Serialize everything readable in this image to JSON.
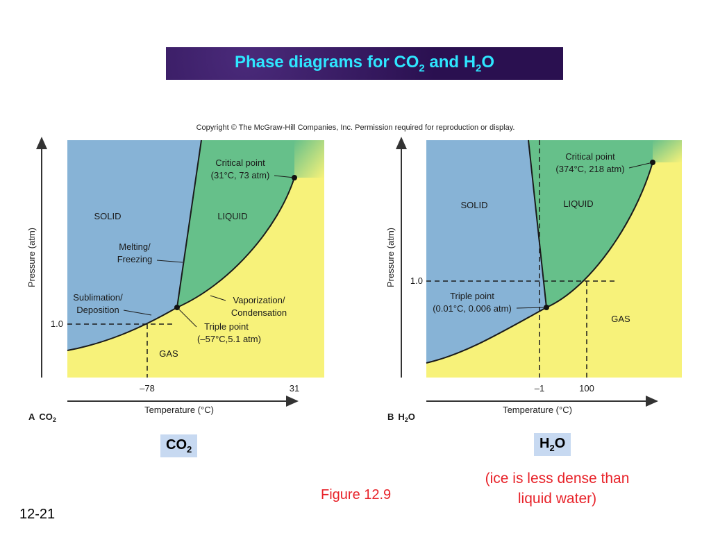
{
  "title": {
    "prefix": "Phase diagrams for CO",
    "sub1": "2",
    "mid": " and H",
    "sub2": "2",
    "suffix": "O"
  },
  "copyright": "Copyright © The McGraw-Hill Companies, Inc. Permission required for reproduction or display.",
  "diagram_a": {
    "ylabel": "Pressure (atm)",
    "xlabel": "Temperature (°C)",
    "panel_letter": "A",
    "panel_formula": "CO",
    "panel_formula_sub": "2",
    "regions": {
      "solid": "SOLID",
      "liquid": "LIQUID",
      "gas": "GAS"
    },
    "critical_point": {
      "line1": "Critical point",
      "line2": "(31°C, 73 atm)"
    },
    "melting": {
      "line1": "Melting/",
      "line2": "Freezing"
    },
    "sublimation": {
      "line1": "Sublimation/",
      "line2": "Deposition"
    },
    "vaporization": {
      "line1": "Vaporization/",
      "line2": "Condensation"
    },
    "triple_point": {
      "line1": "Triple point",
      "line2": "(–57°C,5.1 atm)"
    },
    "y_tick": "1.0",
    "x_ticks": [
      "–78",
      "31"
    ]
  },
  "diagram_b": {
    "ylabel": "Pressure (atm)",
    "xlabel": "Temperature (°C)",
    "panel_letter": "B",
    "panel_formula_pre": "H",
    "panel_formula_sub": "2",
    "panel_formula_post": "O",
    "regions": {
      "solid": "SOLID",
      "liquid": "LIQUID",
      "gas": "GAS"
    },
    "critical_point": {
      "line1": "Critical point",
      "line2": "(374°C, 218 atm)"
    },
    "triple_point": {
      "line1": "Triple point",
      "line2": "(0.01°C, 0.006 atm)"
    },
    "y_tick": "1.0",
    "x_ticks": [
      "–1",
      "100"
    ]
  },
  "labels": {
    "co2": {
      "pre": "CO",
      "sub": "2"
    },
    "h2o": {
      "pre": "H",
      "sub": "2",
      "post": "O"
    }
  },
  "figure_ref": "Figure 12.9",
  "ice_note": {
    "line1": "(ice is less dense than",
    "line2": "liquid water)"
  },
  "slide_number": "12-21",
  "colors": {
    "solid": "#87b3d6",
    "liquid": "#66c08a",
    "gas": "#f7f27a",
    "title_text": "#2ee6ff",
    "note_red": "#e8232a"
  }
}
